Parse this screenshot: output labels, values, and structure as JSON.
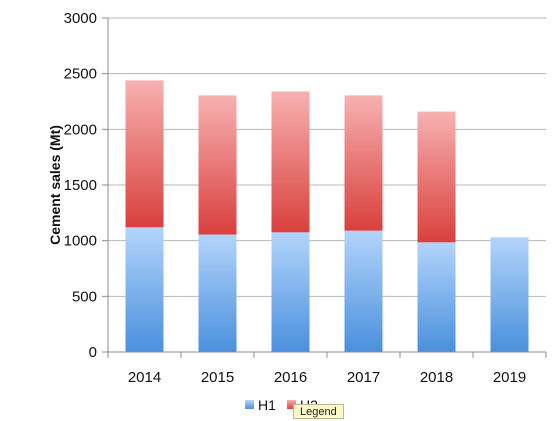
{
  "chart_data": {
    "type": "bar",
    "stacked": true,
    "categories": [
      "2014",
      "2015",
      "2016",
      "2017",
      "2018",
      "2019"
    ],
    "series": [
      {
        "name": "H1",
        "values": [
          1120,
          1055,
          1075,
          1090,
          985,
          1030
        ]
      },
      {
        "name": "H2",
        "values": [
          1320,
          1250,
          1265,
          1215,
          1175,
          0
        ]
      }
    ],
    "title": "",
    "xlabel": "",
    "ylabel": "Cement sales (Mt)",
    "ylim": [
      0,
      3000
    ],
    "yticks": [
      0,
      500,
      1000,
      1500,
      2000,
      2500,
      3000
    ],
    "grid": "horizontal",
    "legend": "bottom",
    "colors": {
      "H1": "#5b9bd5",
      "H2": "#e0504d"
    }
  },
  "tooltip": {
    "text": "Legend"
  }
}
